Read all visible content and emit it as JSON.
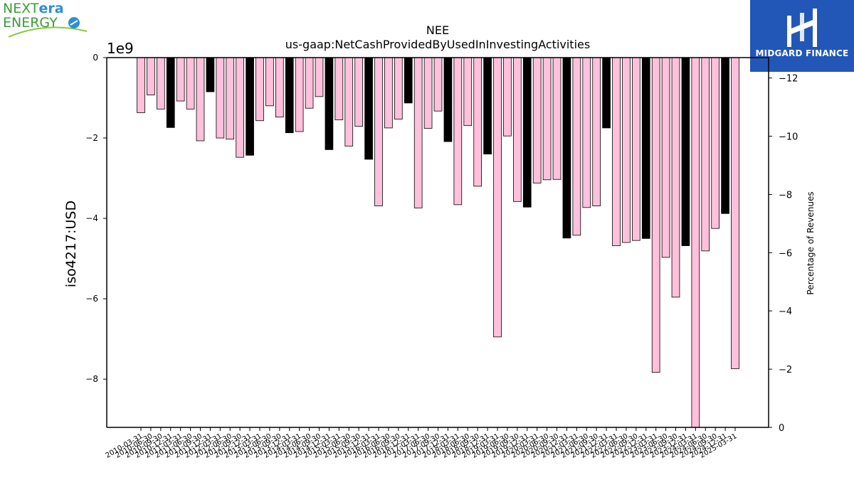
{
  "logos": {
    "left_part1": "NEXT",
    "left_part2": "era",
    "left_line2": "ENERGY",
    "right_text": "MIDGARD FINANCE"
  },
  "colors": {
    "bar_normal": "#ffc0dc",
    "bar_highlight": "#000000",
    "brand_blue": "#2257b7",
    "nee_green": "#3a9d3a",
    "nee_blue": "#2b8fd6"
  },
  "chart_data": {
    "type": "bar",
    "title": "NEE",
    "subtitle": "us-gaap:NetCashProvidedByUsedInInvestingActivities",
    "ylabel": "iso4217:USD",
    "y_offset_text": "1e9",
    "y_ticks": [
      0,
      -2,
      -4,
      -6,
      -8
    ],
    "ylim": [
      -9.2,
      0
    ],
    "y2label": "Percentage of Revenues",
    "y2_ticks": [
      -12,
      -10,
      -8,
      -6,
      -4,
      -2,
      0
    ],
    "y2lim": [
      -12.7,
      0
    ],
    "grid": false,
    "legend": "none",
    "categories": [
      "2010-03-31",
      "2010-06-30",
      "2010-09-30",
      "2010-12-31",
      "2011-03-31",
      "2011-06-30",
      "2011-09-30",
      "2011-12-31",
      "2012-03-31",
      "2012-06-30",
      "2012-09-30",
      "2012-12-31",
      "2013-03-31",
      "2013-06-30",
      "2013-09-30",
      "2013-12-31",
      "2014-03-31",
      "2014-06-30",
      "2014-09-30",
      "2014-12-31",
      "2015-03-31",
      "2015-06-30",
      "2015-09-30",
      "2015-12-31",
      "2016-03-31",
      "2016-06-30",
      "2016-09-30",
      "2016-12-31",
      "2017-03-31",
      "2017-06-30",
      "2017-09-30",
      "2017-12-31",
      "2018-03-31",
      "2018-06-30",
      "2018-09-30",
      "2018-12-31",
      "2019-03-31",
      "2019-06-30",
      "2019-09-30",
      "2019-12-31",
      "2020-03-31",
      "2020-06-30",
      "2020-09-30",
      "2020-12-31",
      "2021-03-31",
      "2021-06-30",
      "2021-09-30",
      "2021-12-31",
      "2022-03-31",
      "2022-06-30",
      "2022-09-30",
      "2022-12-31",
      "2023-03-31",
      "2023-06-30",
      "2023-09-30",
      "2023-12-31",
      "2024-03-31",
      "2024-06-30",
      "2024-09-30",
      "2024-12-31",
      "2025-03-31"
    ],
    "values": [
      -1.37,
      -0.93,
      -1.28,
      -1.74,
      -1.08,
      -1.28,
      -2.07,
      -0.85,
      -2.0,
      -2.03,
      -2.48,
      -2.43,
      -1.57,
      -1.2,
      -1.48,
      -1.87,
      -1.84,
      -1.26,
      -0.97,
      -2.29,
      -1.55,
      -2.2,
      -1.71,
      -2.53,
      -3.69,
      -1.75,
      -1.53,
      -1.13,
      -3.74,
      -1.76,
      -1.33,
      -2.09,
      -3.66,
      -1.69,
      -3.2,
      -2.4,
      -6.95,
      -1.95,
      -3.58,
      -3.72,
      -3.12,
      -3.04,
      -3.03,
      -4.49,
      -4.42,
      -3.73,
      -3.69,
      -1.75,
      -4.68,
      -4.6,
      -4.55,
      -4.5,
      -7.83,
      -4.97,
      -5.96,
      -4.68,
      -9.2,
      -4.81,
      -4.25,
      -3.88,
      -7.74
    ],
    "highlight": [
      false,
      false,
      false,
      true,
      false,
      false,
      false,
      true,
      false,
      false,
      false,
      true,
      false,
      false,
      false,
      true,
      false,
      false,
      false,
      true,
      false,
      false,
      false,
      true,
      false,
      false,
      false,
      true,
      false,
      false,
      false,
      true,
      false,
      false,
      false,
      true,
      false,
      false,
      false,
      true,
      false,
      false,
      false,
      true,
      false,
      false,
      false,
      true,
      false,
      false,
      false,
      true,
      false,
      false,
      false,
      true,
      false,
      false,
      false,
      true,
      false
    ]
  }
}
